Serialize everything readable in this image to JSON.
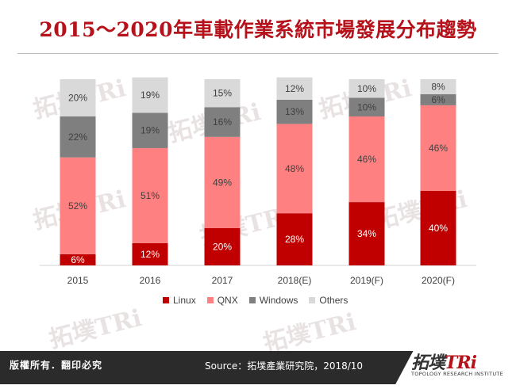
{
  "header": {
    "title": "2015～2020年車載作業系統市場發展分布趨勢"
  },
  "watermark": {
    "text": "拓墣TRi"
  },
  "footer": {
    "copyright": "版權所有．翻印必究",
    "source": "Source：拓墣產業研究院，2018/10"
  },
  "logo": {
    "main_cn": "拓墣",
    "main_en": "TRi",
    "sub": "TOPOLOGY RESEARCH INSTITUTE"
  },
  "colors": {
    "Linux": "#c00000",
    "QNX": "#ff8080",
    "Windows": "#7f7f7f",
    "Others": "#d9d9d9"
  },
  "chart_data": {
    "type": "bar",
    "stacked": true,
    "percent": true,
    "title": "2015～2020年車載作業系統市場發展分布趨勢",
    "xlabel": "",
    "ylabel": "",
    "ylim": [
      0,
      100
    ],
    "grid": false,
    "legend_position": "bottom",
    "categories": [
      "2015",
      "2016",
      "2017",
      "2018(E)",
      "2019(F)",
      "2020(F)"
    ],
    "series": [
      {
        "name": "Linux",
        "values": [
          6,
          12,
          20,
          28,
          34,
          40
        ]
      },
      {
        "name": "QNX",
        "values": [
          52,
          51,
          49,
          48,
          46,
          46
        ]
      },
      {
        "name": "Windows",
        "values": [
          22,
          19,
          16,
          13,
          10,
          6
        ]
      },
      {
        "name": "Others",
        "values": [
          20,
          19,
          15,
          12,
          10,
          8
        ]
      }
    ],
    "data_labels": [
      [
        "6%",
        "12%",
        "20%",
        "28%",
        "34%",
        "40%"
      ],
      [
        "52%",
        "51%",
        "49%",
        "48%",
        "46%",
        "46%"
      ],
      [
        "22%",
        "19%",
        "16%",
        "13%",
        "10%",
        "6%"
      ],
      [
        "20%",
        "19%",
        "15%",
        "12%",
        "10%",
        "8%"
      ]
    ]
  }
}
